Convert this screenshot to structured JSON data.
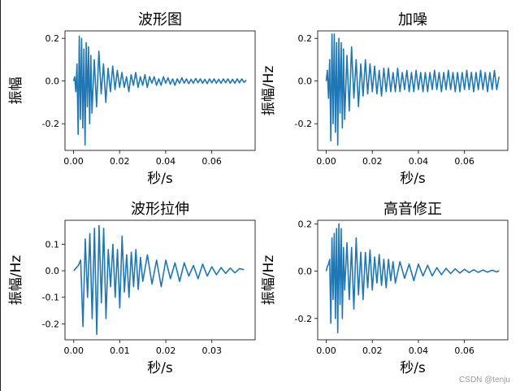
{
  "watermark": "CSDN @tenju",
  "chart_data": [
    {
      "type": "line",
      "title": "波形图",
      "xlabel": "秒/s",
      "ylabel": "振幅",
      "xlim": [
        -0.0037,
        0.0788
      ],
      "ylim": [
        -0.325,
        0.235
      ],
      "xticks": [
        0.0,
        0.02,
        0.04,
        0.06
      ],
      "xtick_labels": [
        "0.00",
        "0.02",
        "0.04",
        "0.06"
      ],
      "yticks": [
        -0.2,
        0.0,
        0.2
      ],
      "ytick_labels": [
        "-0.2",
        "0.0",
        "0.2"
      ],
      "color": "#1f77b4",
      "series": [
        {
          "x": [
            0.0,
            0.0005,
            0.001,
            0.0015,
            0.002,
            0.0025,
            0.003,
            0.0035,
            0.004,
            0.0045,
            0.005,
            0.0055,
            0.006,
            0.0065,
            0.007,
            0.0075,
            0.008,
            0.009,
            0.01,
            0.011,
            0.012,
            0.013,
            0.014,
            0.015,
            0.016,
            0.017,
            0.018,
            0.019,
            0.02,
            0.021,
            0.022,
            0.023,
            0.024,
            0.025,
            0.026,
            0.027,
            0.028,
            0.029,
            0.03,
            0.031,
            0.032,
            0.033,
            0.034,
            0.035,
            0.036,
            0.037,
            0.038,
            0.039,
            0.04,
            0.041,
            0.042,
            0.043,
            0.044,
            0.045,
            0.046,
            0.047,
            0.048,
            0.049,
            0.05,
            0.051,
            0.052,
            0.053,
            0.054,
            0.055,
            0.056,
            0.057,
            0.058,
            0.059,
            0.06,
            0.061,
            0.062,
            0.063,
            0.064,
            0.065,
            0.066,
            0.067,
            0.068,
            0.069,
            0.07,
            0.071,
            0.072,
            0.073,
            0.074,
            0.075
          ],
          "y": [
            0.0,
            0.02,
            -0.05,
            0.08,
            -0.25,
            0.21,
            -0.18,
            0.2,
            -0.22,
            0.15,
            -0.3,
            0.18,
            -0.12,
            0.16,
            -0.2,
            0.12,
            -0.15,
            0.1,
            -0.12,
            0.14,
            -0.06,
            0.08,
            -0.1,
            0.06,
            -0.05,
            0.07,
            -0.04,
            0.05,
            -0.03,
            0.04,
            -0.03,
            0.02,
            -0.05,
            0.03,
            -0.02,
            0.04,
            -0.03,
            0.02,
            -0.02,
            0.03,
            -0.03,
            0.02,
            -0.01,
            0.02,
            -0.02,
            0.01,
            -0.02,
            0.02,
            -0.01,
            0.015,
            -0.015,
            0.01,
            -0.02,
            0.01,
            -0.01,
            0.015,
            -0.01,
            0.01,
            -0.012,
            0.008,
            -0.01,
            0.012,
            -0.008,
            0.01,
            -0.01,
            0.008,
            -0.012,
            0.01,
            -0.008,
            0.01,
            -0.01,
            0.008,
            -0.01,
            0.01,
            -0.008,
            0.01,
            -0.01,
            0.008,
            -0.01,
            0.01,
            -0.008,
            0.01,
            -0.006,
            0.004
          ]
        }
      ]
    },
    {
      "type": "line",
      "title": "加噪",
      "xlabel": "秒/s",
      "ylabel": "振幅/Hz",
      "xlim": [
        -0.0037,
        0.0788
      ],
      "ylim": [
        -0.325,
        0.235
      ],
      "xticks": [
        0.0,
        0.02,
        0.04,
        0.06
      ],
      "xtick_labels": [
        "0.00",
        "0.02",
        "0.04",
        "0.06"
      ],
      "yticks": [
        -0.2,
        0.0,
        0.2
      ],
      "ytick_labels": [
        "-0.2",
        "0.0",
        "0.2"
      ],
      "color": "#1f77b4",
      "series": [
        {
          "x": [
            0.0,
            0.0005,
            0.001,
            0.0015,
            0.002,
            0.0025,
            0.003,
            0.0035,
            0.004,
            0.0045,
            0.005,
            0.0055,
            0.006,
            0.0065,
            0.007,
            0.0075,
            0.008,
            0.009,
            0.01,
            0.011,
            0.012,
            0.013,
            0.014,
            0.015,
            0.016,
            0.017,
            0.018,
            0.019,
            0.02,
            0.021,
            0.022,
            0.023,
            0.024,
            0.025,
            0.026,
            0.027,
            0.028,
            0.029,
            0.03,
            0.031,
            0.032,
            0.033,
            0.034,
            0.035,
            0.036,
            0.037,
            0.038,
            0.039,
            0.04,
            0.041,
            0.042,
            0.043,
            0.044,
            0.045,
            0.046,
            0.047,
            0.048,
            0.049,
            0.05,
            0.051,
            0.052,
            0.053,
            0.054,
            0.055,
            0.056,
            0.057,
            0.058,
            0.059,
            0.06,
            0.061,
            0.062,
            0.063,
            0.064,
            0.065,
            0.066,
            0.067,
            0.068,
            0.069,
            0.07,
            0.071,
            0.072,
            0.073,
            0.074,
            0.075
          ],
          "y": [
            0.0,
            0.05,
            -0.08,
            0.1,
            -0.28,
            0.22,
            -0.2,
            0.22,
            -0.24,
            0.18,
            -0.3,
            0.2,
            -0.15,
            0.18,
            -0.22,
            0.15,
            -0.18,
            0.12,
            -0.14,
            0.16,
            -0.08,
            0.1,
            -0.12,
            0.08,
            -0.07,
            0.1,
            -0.06,
            0.08,
            -0.05,
            0.07,
            -0.06,
            0.05,
            -0.07,
            0.06,
            -0.05,
            0.06,
            -0.05,
            0.04,
            -0.05,
            0.06,
            -0.05,
            0.04,
            -0.04,
            0.05,
            -0.05,
            0.04,
            -0.05,
            0.05,
            -0.04,
            0.04,
            -0.05,
            0.04,
            -0.05,
            0.04,
            -0.04,
            0.05,
            -0.04,
            0.04,
            -0.05,
            0.04,
            -0.04,
            0.05,
            -0.04,
            0.04,
            -0.05,
            0.04,
            -0.05,
            0.04,
            -0.04,
            0.05,
            -0.04,
            0.04,
            -0.05,
            0.04,
            -0.04,
            0.05,
            -0.04,
            0.04,
            -0.05,
            0.04,
            -0.04,
            0.05,
            -0.04,
            0.02
          ]
        }
      ]
    },
    {
      "type": "line",
      "title": "波形拉伸",
      "xlabel": "秒/s",
      "ylabel": "振幅/Hz",
      "xlim": [
        -0.0019,
        0.0394
      ],
      "ylim": [
        -0.26,
        0.19
      ],
      "xticks": [
        0.0,
        0.01,
        0.02,
        0.03
      ],
      "xtick_labels": [
        "0.00",
        "0.01",
        "0.02",
        "0.03"
      ],
      "yticks": [
        -0.2,
        -0.1,
        0.0,
        0.1
      ],
      "ytick_labels": [
        "-0.2",
        "-0.1",
        "0.0",
        "0.1"
      ],
      "color": "#1f77b4",
      "series": [
        {
          "x": [
            0.0,
            0.0005,
            0.001,
            0.0015,
            0.002,
            0.0025,
            0.003,
            0.0035,
            0.004,
            0.0045,
            0.005,
            0.0055,
            0.006,
            0.0065,
            0.007,
            0.0075,
            0.008,
            0.0085,
            0.009,
            0.0095,
            0.01,
            0.0105,
            0.011,
            0.0115,
            0.012,
            0.0125,
            0.013,
            0.0135,
            0.014,
            0.0145,
            0.015,
            0.016,
            0.017,
            0.018,
            0.019,
            0.02,
            0.021,
            0.022,
            0.023,
            0.024,
            0.025,
            0.026,
            0.027,
            0.028,
            0.029,
            0.03,
            0.031,
            0.032,
            0.033,
            0.034,
            0.035,
            0.036,
            0.037
          ],
          "y": [
            0.0,
            0.01,
            0.02,
            0.04,
            -0.21,
            0.12,
            -0.1,
            0.14,
            -0.18,
            0.16,
            -0.24,
            0.17,
            -0.12,
            0.16,
            -0.18,
            0.08,
            -0.06,
            0.1,
            -0.1,
            0.08,
            -0.14,
            0.13,
            -0.08,
            0.06,
            -0.1,
            0.07,
            -0.06,
            0.08,
            -0.07,
            0.05,
            -0.04,
            0.06,
            -0.05,
            0.04,
            -0.06,
            0.04,
            -0.03,
            0.03,
            -0.04,
            0.03,
            -0.02,
            0.02,
            -0.03,
            0.025,
            -0.02,
            0.015,
            -0.015,
            0.012,
            -0.01,
            0.01,
            -0.008,
            0.008,
            0.004
          ]
        }
      ]
    },
    {
      "type": "line",
      "title": "高音修正",
      "xlabel": "秒/s",
      "ylabel": "振幅/Hz",
      "xlim": [
        -0.0037,
        0.0788
      ],
      "ylim": [
        -0.29,
        0.215
      ],
      "xticks": [
        0.0,
        0.02,
        0.04,
        0.06
      ],
      "xtick_labels": [
        "0.00",
        "0.02",
        "0.04",
        "0.06"
      ],
      "yticks": [
        -0.2,
        0.0,
        0.2
      ],
      "ytick_labels": [
        "-0.2",
        "0.0",
        "0.2"
      ],
      "color": "#1f77b4",
      "series": [
        {
          "x": [
            0.0,
            0.0005,
            0.001,
            0.0015,
            0.002,
            0.0025,
            0.003,
            0.0035,
            0.004,
            0.0045,
            0.005,
            0.0055,
            0.006,
            0.0065,
            0.007,
            0.0075,
            0.008,
            0.009,
            0.01,
            0.011,
            0.012,
            0.013,
            0.014,
            0.015,
            0.016,
            0.017,
            0.018,
            0.019,
            0.02,
            0.021,
            0.022,
            0.023,
            0.024,
            0.025,
            0.026,
            0.027,
            0.028,
            0.029,
            0.03,
            0.032,
            0.034,
            0.036,
            0.038,
            0.04,
            0.042,
            0.044,
            0.046,
            0.048,
            0.05,
            0.052,
            0.054,
            0.056,
            0.058,
            0.06,
            0.062,
            0.064,
            0.066,
            0.068,
            0.07,
            0.072,
            0.074,
            0.075
          ],
          "y": [
            0.0,
            0.02,
            0.03,
            0.05,
            -0.22,
            0.14,
            -0.12,
            0.16,
            -0.2,
            0.18,
            -0.26,
            0.2,
            -0.14,
            0.18,
            -0.2,
            0.1,
            -0.08,
            0.12,
            -0.12,
            0.1,
            -0.16,
            0.14,
            -0.1,
            0.08,
            -0.12,
            0.08,
            -0.07,
            0.09,
            -0.08,
            0.06,
            -0.05,
            0.07,
            -0.06,
            0.05,
            -0.07,
            0.05,
            -0.04,
            0.04,
            -0.05,
            0.04,
            -0.03,
            0.03,
            -0.04,
            0.03,
            -0.02,
            0.025,
            -0.02,
            0.015,
            -0.015,
            0.012,
            -0.01,
            0.01,
            -0.008,
            0.008,
            -0.006,
            0.006,
            -0.005,
            0.005,
            -0.004,
            0.004,
            -0.003,
            0.002
          ]
        }
      ]
    }
  ]
}
